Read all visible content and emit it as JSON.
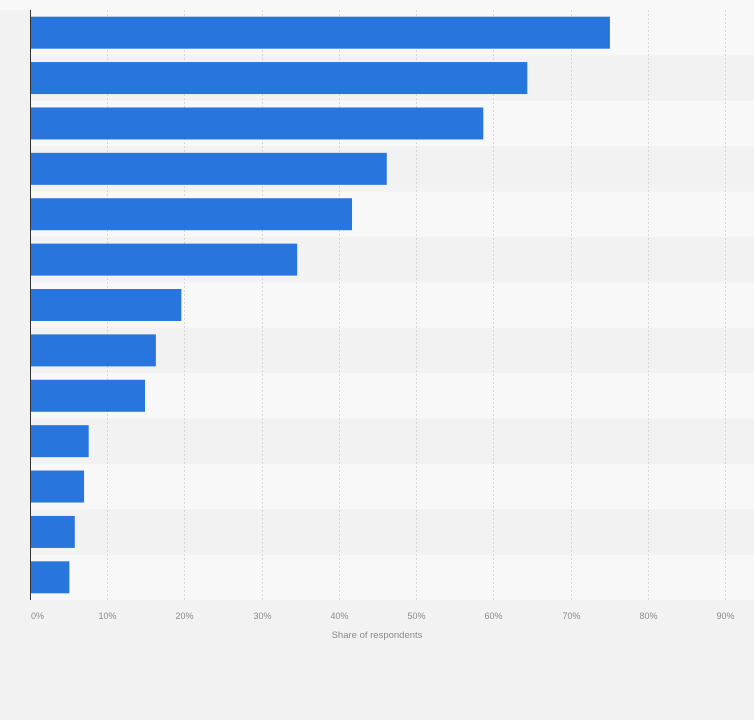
{
  "chart_data": {
    "type": "bar",
    "orientation": "horizontal",
    "title": "",
    "xlabel": "Share of respondents",
    "ylabel": "",
    "xlim": [
      0,
      90
    ],
    "x_ticks": [
      "0%",
      "10%",
      "20%",
      "30%",
      "40%",
      "50%",
      "60%",
      "70%",
      "80%",
      "90%"
    ],
    "x_tick_values": [
      0,
      10,
      20,
      30,
      40,
      50,
      60,
      70,
      80,
      90
    ],
    "values": [
      75.1,
      64.4,
      58.7,
      46.2,
      41.7,
      34.6,
      19.6,
      16.3,
      14.9,
      7.6,
      7.0,
      5.8,
      5.1
    ],
    "grid": true,
    "bar_color": "#2876dd"
  }
}
